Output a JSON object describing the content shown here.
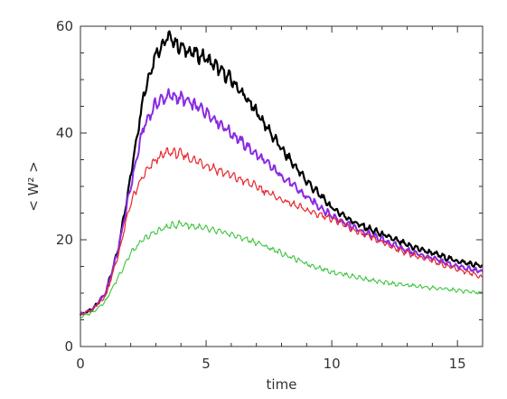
{
  "chart_data": {
    "type": "line",
    "xlabel": "time",
    "ylabel": "< W² >",
    "xlim": [
      0,
      16
    ],
    "ylim": [
      0,
      60
    ],
    "xticks": [
      0,
      5,
      10,
      15
    ],
    "xtick_labels": [
      "0",
      "5",
      "10",
      "15"
    ],
    "yticks": [
      0,
      20,
      40,
      60
    ],
    "ytick_labels": [
      "0",
      "20",
      "40",
      "60"
    ],
    "grid": false,
    "legend": "none",
    "series": [
      {
        "color": "#000000",
        "width": 2.2,
        "x": [
          0,
          0.5,
          1,
          1.5,
          2,
          2.5,
          3,
          3.5,
          4,
          5,
          6,
          7,
          8,
          9,
          10,
          11,
          12,
          13,
          14,
          15,
          16
        ],
        "y": [
          6,
          7,
          10,
          18,
          32,
          47,
          55,
          58,
          56,
          54,
          50,
          44,
          37,
          31,
          26,
          23,
          21,
          19,
          17.5,
          16,
          15
        ]
      },
      {
        "color": "#8a2be2",
        "width": 2,
        "x": [
          0,
          0.5,
          1,
          1.5,
          2,
          2.5,
          3,
          3.5,
          4,
          5,
          6,
          7,
          8,
          9,
          10,
          11,
          12,
          13,
          14,
          15,
          16
        ],
        "y": [
          6,
          7,
          10,
          18,
          30,
          41,
          45.5,
          47,
          46.5,
          44,
          40,
          36,
          32,
          28,
          24.5,
          22,
          20,
          18,
          16.5,
          15,
          14
        ]
      },
      {
        "color": "#e8262e",
        "width": 1.2,
        "x": [
          0,
          0.5,
          1,
          1.5,
          2,
          2.5,
          3,
          3.5,
          4,
          5,
          6,
          7,
          8,
          9,
          10,
          11,
          12,
          13,
          14,
          15,
          16
        ],
        "y": [
          6,
          7,
          9.5,
          17,
          27,
          32,
          35,
          36.5,
          36,
          34,
          32,
          30,
          27.5,
          25.5,
          24,
          21.5,
          19.5,
          17.5,
          16,
          14.5,
          13
        ]
      },
      {
        "color": "#3ec43e",
        "width": 1.1,
        "x": [
          0,
          0.5,
          1,
          1.5,
          2,
          2.5,
          3,
          3.5,
          4,
          5,
          6,
          7,
          8,
          9,
          10,
          11,
          12,
          13,
          14,
          15,
          16
        ],
        "y": [
          5.5,
          6.5,
          8.5,
          13,
          17.5,
          20,
          21.5,
          22.5,
          23,
          22,
          21,
          19.5,
          17.5,
          15.5,
          14,
          13,
          12,
          11.5,
          11,
          10.5,
          10
        ]
      }
    ]
  }
}
